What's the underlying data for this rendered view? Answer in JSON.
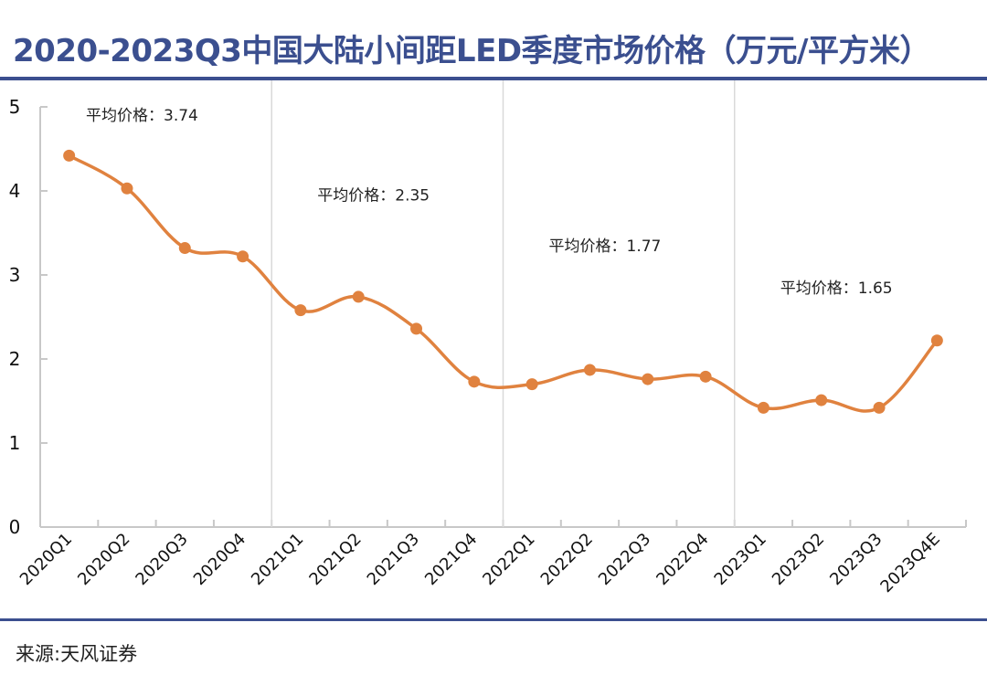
{
  "header": {
    "title": "2020-2023Q3中国大陆小间距LED季度市场价格（万元/平方米）"
  },
  "footer": {
    "source": "来源:天风证券"
  },
  "colors": {
    "title": "#3b4f8f",
    "line": "#e0823f",
    "axis": "#c8c8c8",
    "divider": "#d9d9d9"
  },
  "chart_data": {
    "type": "line",
    "title": "2020-2023Q3中国大陆小间距LED季度市场价格（万元/平方米）",
    "xlabel": "",
    "ylabel": "",
    "ylim": [
      0,
      5
    ],
    "yticks": [
      "0",
      "1",
      "2",
      "3",
      "4",
      "5"
    ],
    "grid": false,
    "smooth": true,
    "categories": [
      "2020Q1",
      "2020Q2",
      "2020Q3",
      "2020Q4",
      "2021Q1",
      "2021Q2",
      "2021Q3",
      "2021Q4",
      "2022Q1",
      "2022Q2",
      "2022Q3",
      "2022Q4",
      "2023Q1",
      "2023Q2",
      "2023Q3",
      "2023Q4E"
    ],
    "series": [
      {
        "name": "价格",
        "values": [
          4.42,
          4.03,
          3.32,
          3.22,
          2.58,
          2.74,
          2.36,
          1.73,
          1.7,
          1.87,
          1.76,
          1.79,
          1.42,
          1.51,
          1.42,
          2.22
        ]
      }
    ],
    "year_dividers_after": [
      "2020Q4",
      "2021Q4",
      "2022Q4"
    ],
    "annotations": [
      {
        "text": "平均价格：3.74",
        "year": "2020",
        "value": 3.74,
        "label_y": 4.9
      },
      {
        "text": "平均价格：2.35",
        "year": "2021",
        "value": 2.35,
        "label_y": 3.95
      },
      {
        "text": "平均价格：1.77",
        "year": "2022",
        "value": 1.77,
        "label_y": 3.35
      },
      {
        "text": "平均价格：1.65",
        "year": "2023",
        "value": 1.65,
        "label_y": 2.85
      }
    ]
  }
}
